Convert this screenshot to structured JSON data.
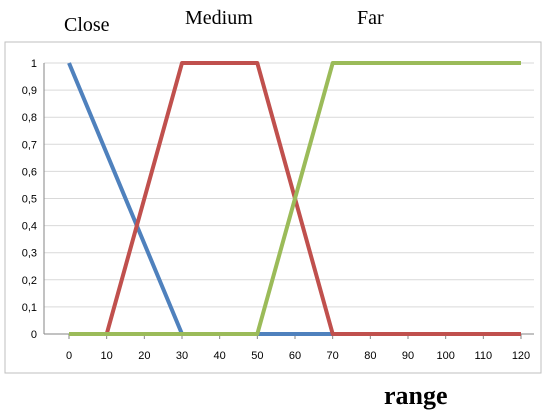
{
  "chart_data": {
    "type": "line",
    "title": "",
    "xlabel": "range",
    "ylabel": "",
    "x": [
      0,
      10,
      20,
      30,
      40,
      50,
      60,
      70,
      80,
      90,
      100,
      110,
      120
    ],
    "x_tick_labels": [
      "0",
      "10",
      "20",
      "30",
      "40",
      "50",
      "60",
      "70",
      "80",
      "90",
      "100",
      "110",
      "120"
    ],
    "y_tick_labels": [
      "0",
      "0,1",
      "0,2",
      "0,3",
      "0,4",
      "0,5",
      "0,6",
      "0,7",
      "0,8",
      "0,9",
      "1"
    ],
    "xlim": [
      0,
      120
    ],
    "ylim": [
      0,
      1
    ],
    "grid": true,
    "legend": "none",
    "annotations": [
      "Close",
      "Medium",
      "Far"
    ],
    "series": [
      {
        "name": "Close",
        "color": "#4f81bd",
        "points": [
          [
            0,
            1
          ],
          [
            30,
            0
          ],
          [
            120,
            0
          ]
        ]
      },
      {
        "name": "Medium",
        "color": "#c0504d",
        "points": [
          [
            0,
            0
          ],
          [
            10,
            0
          ],
          [
            30,
            1
          ],
          [
            50,
            1
          ],
          [
            70,
            0
          ],
          [
            120,
            0
          ]
        ]
      },
      {
        "name": "Far",
        "color": "#9bbb59",
        "points": [
          [
            0,
            0
          ],
          [
            50,
            0
          ],
          [
            70,
            1
          ],
          [
            120,
            1
          ]
        ]
      }
    ]
  }
}
